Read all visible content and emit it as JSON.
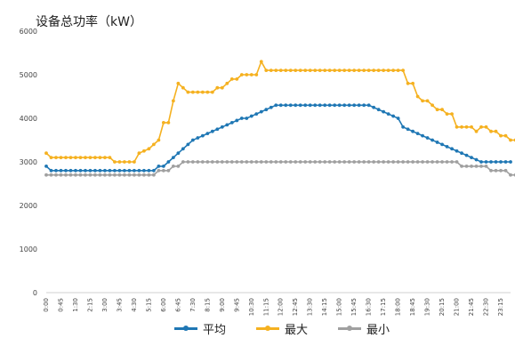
{
  "chart_data": {
    "type": "line",
    "title": "设备总功率（kW）",
    "xlabel": "",
    "ylabel": "",
    "ylim": [
      0,
      6000
    ],
    "yticks": [
      0,
      1000,
      2000,
      3000,
      4000,
      5000,
      6000
    ],
    "grid": false,
    "legend_position": "bottom",
    "x_tick_labels": [
      "0:00",
      "0:45",
      "1:30",
      "2:15",
      "3:00",
      "3:45",
      "4:30",
      "5:15",
      "6:00",
      "6:45",
      "7:30",
      "8:15",
      "9:00",
      "9:45",
      "10:30",
      "11:15",
      "12:00",
      "12:45",
      "13:30",
      "14:15",
      "15:00",
      "15:45",
      "16:30",
      "17:15",
      "18:00",
      "18:45",
      "19:30",
      "20:15",
      "21:00",
      "21:45",
      "22:30",
      "23:15"
    ],
    "x_count": 96,
    "series": [
      {
        "name": "平均",
        "color": "#1f77b4",
        "values": [
          2900,
          2800,
          2800,
          2800,
          2800,
          2800,
          2800,
          2800,
          2800,
          2800,
          2800,
          2800,
          2800,
          2800,
          2800,
          2800,
          2800,
          2800,
          2800,
          2800,
          2800,
          2800,
          2800,
          2900,
          2900,
          3000,
          3100,
          3200,
          3300,
          3400,
          3500,
          3550,
          3600,
          3650,
          3700,
          3750,
          3800,
          3850,
          3900,
          3950,
          4000,
          4000,
          4050,
          4100,
          4150,
          4200,
          4250,
          4300,
          4300,
          4300,
          4300,
          4300,
          4300,
          4300,
          4300,
          4300,
          4300,
          4300,
          4300,
          4300,
          4300,
          4300,
          4300,
          4300,
          4300,
          4300,
          4300,
          4250,
          4200,
          4150,
          4100,
          4050,
          4000,
          3800,
          3750,
          3700,
          3650,
          3600,
          3550,
          3500,
          3450,
          3400,
          3350,
          3300,
          3250,
          3200,
          3150,
          3100,
          3050,
          3000,
          3000,
          3000,
          3000,
          3000,
          3000,
          3000
        ]
      },
      {
        "name": "最大",
        "color": "#f5b120",
        "values": [
          3200,
          3100,
          3100,
          3100,
          3100,
          3100,
          3100,
          3100,
          3100,
          3100,
          3100,
          3100,
          3100,
          3100,
          3000,
          3000,
          3000,
          3000,
          3000,
          3200,
          3250,
          3300,
          3400,
          3500,
          3900,
          3900,
          4400,
          4800,
          4700,
          4600,
          4600,
          4600,
          4600,
          4600,
          4600,
          4700,
          4700,
          4800,
          4900,
          4900,
          5000,
          5000,
          5000,
          5000,
          5300,
          5100,
          5100,
          5100,
          5100,
          5100,
          5100,
          5100,
          5100,
          5100,
          5100,
          5100,
          5100,
          5100,
          5100,
          5100,
          5100,
          5100,
          5100,
          5100,
          5100,
          5100,
          5100,
          5100,
          5100,
          5100,
          5100,
          5100,
          5100,
          5100,
          4800,
          4800,
          4500,
          4400,
          4400,
          4300,
          4200,
          4200,
          4100,
          4100,
          3800,
          3800,
          3800,
          3800,
          3700,
          3800,
          3800,
          3700,
          3700,
          3600,
          3600,
          3500,
          3500
        ]
      },
      {
        "name": "最小",
        "color": "#a0a0a0",
        "values": [
          2700,
          2700,
          2700,
          2700,
          2700,
          2700,
          2700,
          2700,
          2700,
          2700,
          2700,
          2700,
          2700,
          2700,
          2700,
          2700,
          2700,
          2700,
          2700,
          2700,
          2700,
          2700,
          2700,
          2800,
          2800,
          2800,
          2900,
          2900,
          3000,
          3000,
          3000,
          3000,
          3000,
          3000,
          3000,
          3000,
          3000,
          3000,
          3000,
          3000,
          3000,
          3000,
          3000,
          3000,
          3000,
          3000,
          3000,
          3000,
          3000,
          3000,
          3000,
          3000,
          3000,
          3000,
          3000,
          3000,
          3000,
          3000,
          3000,
          3000,
          3000,
          3000,
          3000,
          3000,
          3000,
          3000,
          3000,
          3000,
          3000,
          3000,
          3000,
          3000,
          3000,
          3000,
          3000,
          3000,
          3000,
          3000,
          3000,
          3000,
          3000,
          3000,
          3000,
          3000,
          3000,
          2900,
          2900,
          2900,
          2900,
          2900,
          2900,
          2800,
          2800,
          2800,
          2800,
          2700,
          2700
        ]
      }
    ]
  }
}
